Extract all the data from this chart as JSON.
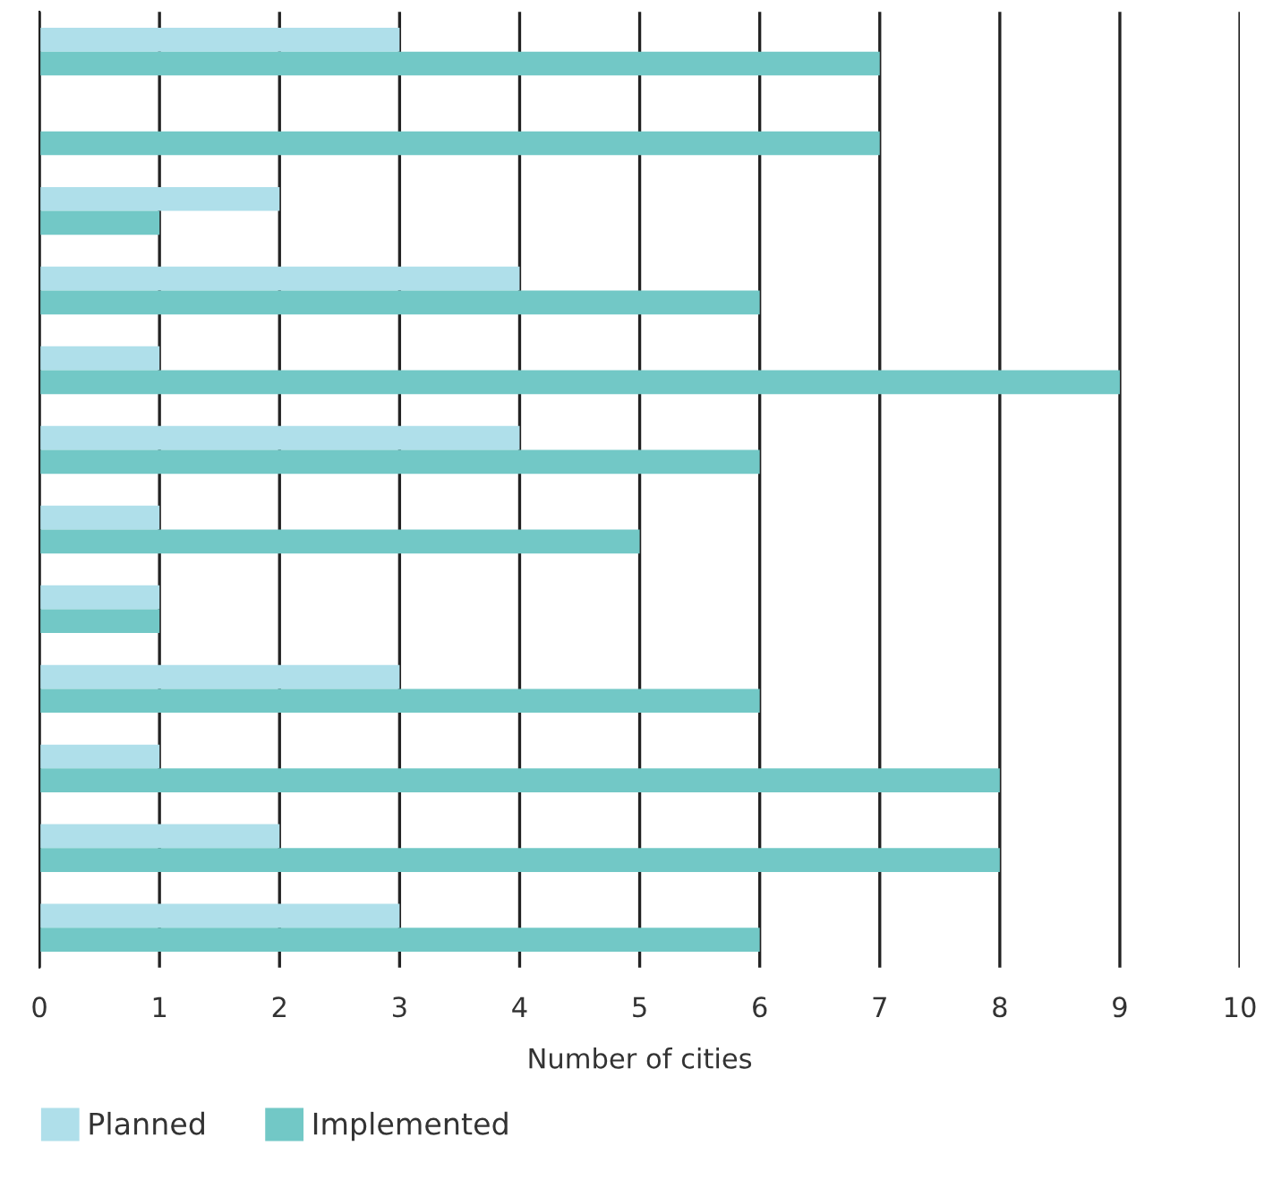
{
  "chart_data": {
    "type": "bar",
    "orientation": "horizontal",
    "xlabel": "Number of cities",
    "categories": [
      null,
      null,
      null,
      null,
      null,
      null,
      null,
      null,
      null,
      null,
      null,
      null
    ],
    "series": [
      {
        "name": "Planned",
        "color": "#afdfea",
        "values": [
          3,
          0,
          2,
          4,
          1,
          4,
          1,
          1,
          3,
          1,
          2,
          3
        ]
      },
      {
        "name": "Implemented",
        "color": "#72c8c6",
        "values": [
          7,
          7,
          1,
          6,
          9,
          6,
          5,
          1,
          6,
          8,
          8,
          6
        ]
      }
    ],
    "xlim": [
      0,
      10
    ],
    "xticks": [
      0,
      1,
      2,
      3,
      4,
      5,
      6,
      7,
      8,
      9,
      10
    ],
    "grid": "x",
    "legend": "bottom left"
  }
}
